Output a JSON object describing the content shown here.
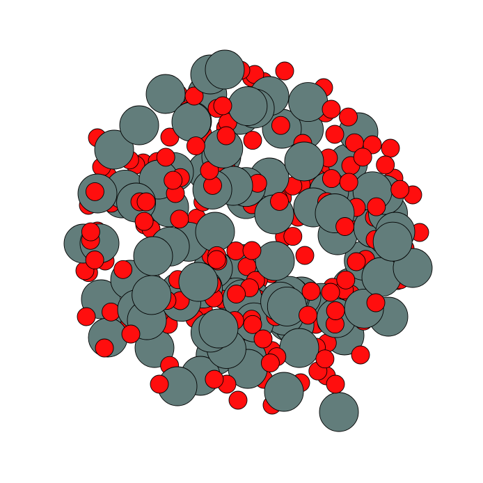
{
  "scene": {
    "kind": "particle-cluster",
    "background": "#ffffff",
    "outline": "#000000",
    "large_particle": {
      "color": "#627d7b"
    },
    "small_particle": {
      "color": "#ff0e0e"
    }
  }
}
